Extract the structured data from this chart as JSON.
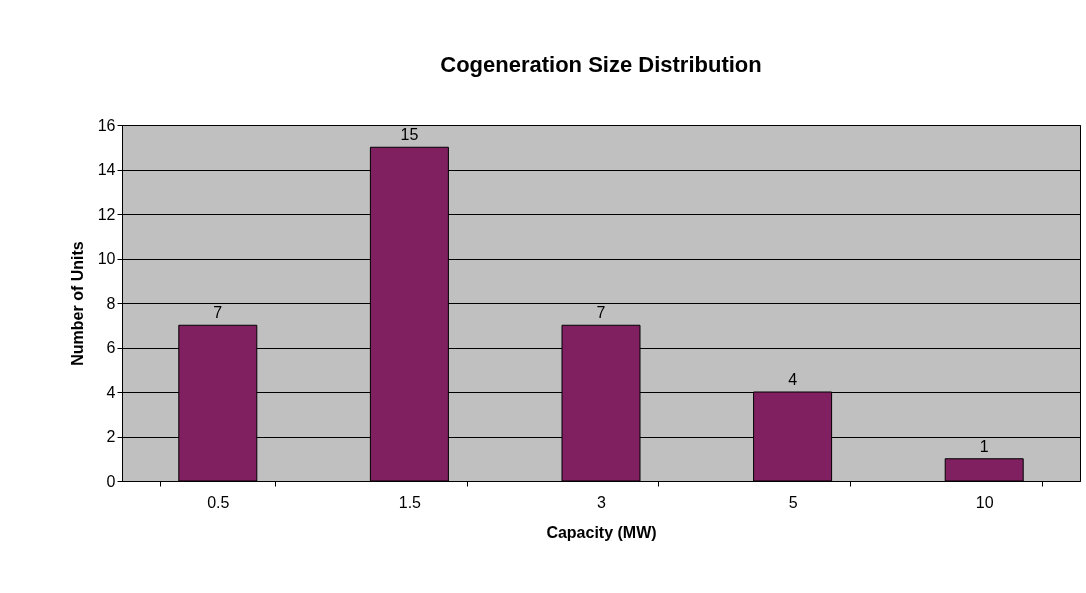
{
  "chart_data": {
    "type": "bar",
    "title": "Cogeneration Size Distribution",
    "xlabel": "Capacity (MW)",
    "ylabel": "Number of Units",
    "categories": [
      "0.5",
      "1.5",
      "3",
      "5",
      "10"
    ],
    "values": [
      7,
      15,
      7,
      4,
      1
    ],
    "color": "#802060",
    "ylim": [
      0,
      16
    ],
    "yticks": [
      0,
      2,
      4,
      6,
      8,
      10,
      12,
      14,
      16
    ],
    "grid": "y",
    "data_labels": true
  }
}
